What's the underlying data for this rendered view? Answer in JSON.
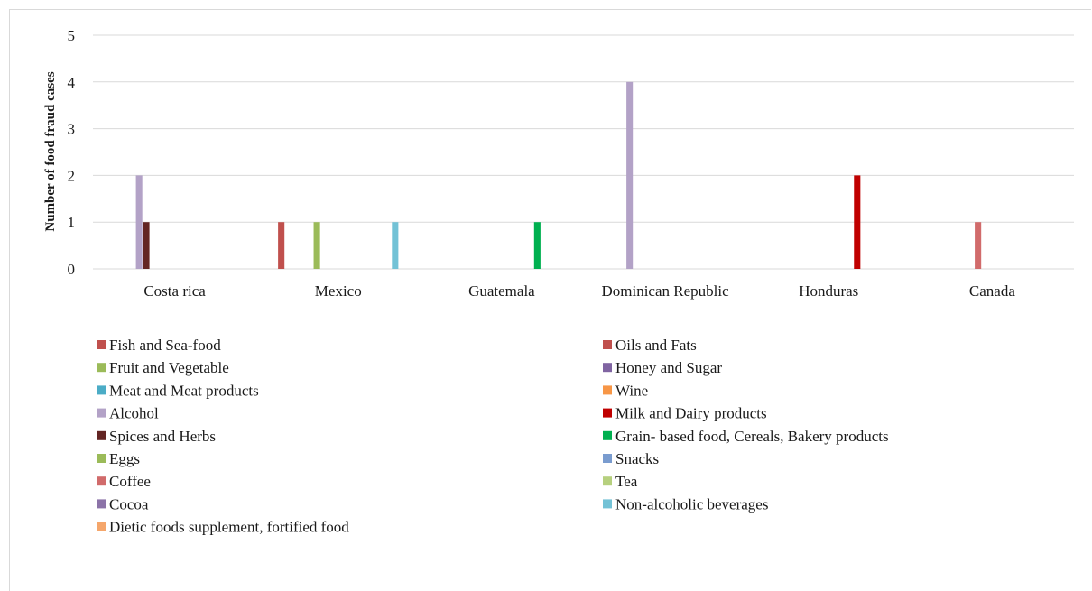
{
  "chart_data": {
    "type": "bar",
    "title": "",
    "xlabel": "",
    "ylabel": "Number of food fraud cases",
    "ylim": [
      0,
      5
    ],
    "yticks": [
      0,
      1,
      2,
      3,
      4,
      5
    ],
    "grid": true,
    "legend_position": "bottom",
    "categories": [
      "Costa rica",
      "Mexico",
      "Guatemala",
      "Dominican Republic",
      "Honduras",
      "Canada"
    ],
    "series": [
      {
        "name": "Fish and Sea-food",
        "color": "#c0504d",
        "values": [
          0,
          1,
          0,
          0,
          0,
          0
        ]
      },
      {
        "name": "Fruit and Vegetable",
        "color": "#9bbb59",
        "values": [
          0,
          0,
          0,
          0,
          0,
          0
        ]
      },
      {
        "name": "Meat and Meat products",
        "color": "#4bacc6",
        "values": [
          0,
          0,
          0,
          0,
          0,
          0
        ]
      },
      {
        "name": "Alcohol",
        "color": "#b3a2c7",
        "values": [
          2,
          0,
          0,
          4,
          0,
          0
        ]
      },
      {
        "name": "Spices and Herbs",
        "color": "#632523",
        "values": [
          1,
          0,
          0,
          0,
          0,
          0
        ]
      },
      {
        "name": "Eggs",
        "color": "#9bbb59",
        "values": [
          0,
          1,
          0,
          0,
          0,
          0
        ]
      },
      {
        "name": "Coffee",
        "color": "#d16b6b",
        "values": [
          0,
          0,
          0,
          0,
          0,
          1
        ]
      },
      {
        "name": "Cocoa",
        "color": "#8c73a8",
        "values": [
          0,
          0,
          0,
          0,
          0,
          0
        ]
      },
      {
        "name": "Dietic foods supplement, fortified food",
        "color": "#f5a66b",
        "values": [
          0,
          0,
          0,
          0,
          0,
          0
        ]
      },
      {
        "name": "Oils and Fats",
        "color": "#c0504d",
        "values": [
          0,
          0,
          0,
          0,
          0,
          0
        ]
      },
      {
        "name": "Honey and Sugar",
        "color": "#8064a2",
        "values": [
          0,
          0,
          0,
          0,
          0,
          0
        ]
      },
      {
        "name": "Wine",
        "color": "#f79646",
        "values": [
          0,
          0,
          0,
          0,
          0,
          0
        ]
      },
      {
        "name": "Milk and Dairy products",
        "color": "#c00000",
        "values": [
          0,
          0,
          0,
          0,
          2,
          0
        ]
      },
      {
        "name": "Grain- based food, Cereals, Bakery products",
        "color": "#00b050",
        "values": [
          0,
          0,
          1,
          0,
          0,
          0
        ]
      },
      {
        "name": "Snacks",
        "color": "#7a9ccf",
        "values": [
          0,
          0,
          0,
          0,
          0,
          0
        ]
      },
      {
        "name": "Tea",
        "color": "#b6d07e",
        "values": [
          0,
          0,
          0,
          0,
          0,
          0
        ]
      },
      {
        "name": "Non-alcoholic beverages",
        "color": "#73c2d6",
        "values": [
          0,
          1,
          0,
          0,
          0,
          0
        ]
      }
    ]
  }
}
